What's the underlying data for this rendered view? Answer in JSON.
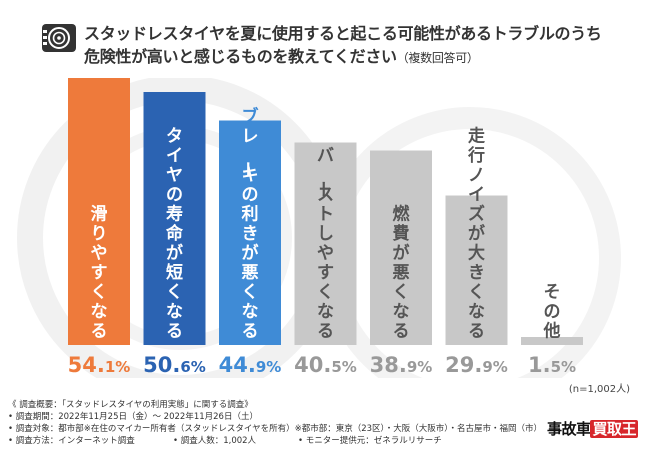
{
  "header": {
    "title_line1": "スタッドレスタイヤを夏に使用すると起こる可能性があるトラブルのうち",
    "title_line2": "危険性が高いと感じるものを教えてください",
    "title_suffix": "（複数回答可）",
    "icon": "tire-icon"
  },
  "chart_data": {
    "type": "bar",
    "title": "スタッドレスタイヤを夏に使用すると起こる可能性があるトラブルのうち危険性が高いと感じるものを教えてください（複数回答可）",
    "categories": [
      "滑りやすくなる",
      "タイヤの寿命が短くなる",
      "ブレーキの利きが悪くなる",
      "バーストしやすくなる",
      "燃費が悪くなる",
      "走行ノイズが大きくなる",
      "その他"
    ],
    "values": [
      54.1,
      50.6,
      44.9,
      40.5,
      38.9,
      29.9,
      1.5
    ],
    "unit": "%",
    "bar_colors": [
      "#ee7a3b",
      "#2b63b2",
      "#3f8bd6",
      "#c8c8c8",
      "#c8c8c8",
      "#c8c8c8",
      "#c8c8c8"
    ],
    "label_colors": [
      "#ee7a3b",
      "#2b63b2",
      "#3f8bd6",
      "#999999",
      "#999999",
      "#999999",
      "#999999"
    ],
    "label_styles": [
      "white-in-bar",
      "white-in-bar",
      "blue-on-top",
      "gray-in-bar",
      "gray-in-bar",
      "gray-on-top",
      "gray-on-top"
    ],
    "ylim": [
      0,
      60
    ],
    "xlabel": "",
    "ylabel": "",
    "grid": false
  },
  "sample_size": "(n=1,002人)",
  "footer": {
    "heading": "《 調査概要：「スタッドレスタイヤの利用実態」に関する調査》",
    "period": "• 調査期間：2022年11月25日（金）～ 2022年11月26日（土）",
    "target": "• 調査対象：都市部※在住のマイカー所有者（スタッドレスタイヤを所有）",
    "region": "※都市部：東京（23区）・大阪（大阪市）・名古屋市・福岡（市）",
    "method": "• 調査方法：インターネット調査",
    "count": "• 調査人数：1,002人",
    "provider": "• モニター提供元：ゼネラルリサーチ"
  },
  "logo": {
    "part1": "事故車",
    "part2": "買取王"
  }
}
